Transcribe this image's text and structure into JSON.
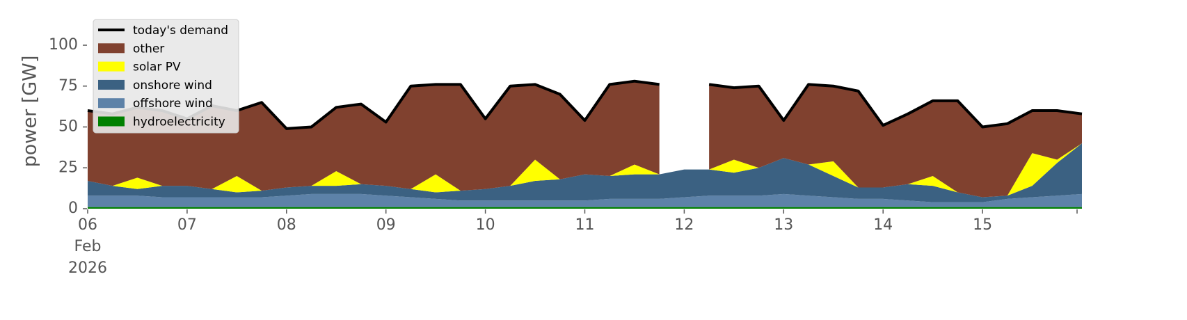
{
  "chart_data": {
    "type": "stacked-area",
    "ylabel": "power [GW]",
    "legend": "upper left",
    "x": [
      6,
      6.25,
      6.5,
      6.75,
      7,
      7.25,
      7.5,
      7.75,
      8,
      8.25,
      8.5,
      8.75,
      9,
      9.25,
      9.5,
      9.75,
      10,
      10.25,
      10.5,
      10.75,
      11,
      11.25,
      11.5,
      11.75,
      12,
      12.25,
      12.5,
      12.75,
      13,
      13.25,
      13.5,
      13.75,
      14,
      14.25,
      14.5,
      14.75,
      15,
      15.25,
      15.5,
      15.75,
      16
    ],
    "xlim": [
      6,
      16
    ],
    "xticks": [
      {
        "value": 6,
        "label": "06 Feb 2026"
      },
      {
        "value": 7,
        "label": "07"
      },
      {
        "value": 8,
        "label": "08"
      },
      {
        "value": 9,
        "label": "09"
      },
      {
        "value": 10,
        "label": "10"
      },
      {
        "value": 11,
        "label": "11"
      },
      {
        "value": 12,
        "label": "12"
      },
      {
        "value": 13,
        "label": "13"
      },
      {
        "value": 14,
        "label": "14"
      },
      {
        "value": 15,
        "label": "15"
      }
    ],
    "ylim": [
      0,
      120
    ],
    "yticks": [
      0,
      25,
      50,
      75,
      100
    ],
    "series": [
      {
        "name": "today's demand",
        "type": "line",
        "color": "#000000",
        "values": [
          60,
          58,
          62,
          60,
          55,
          63,
          60,
          65,
          49,
          50,
          62,
          64,
          53,
          75,
          76,
          76,
          55,
          75,
          76,
          70,
          54,
          76,
          78,
          76,
          null,
          76,
          74,
          75,
          54,
          76,
          75,
          72,
          51,
          58,
          66,
          66,
          50,
          52,
          60,
          60,
          58
        ]
      },
      {
        "name": "other",
        "type": "area",
        "color": "#80412f",
        "values": [
          43,
          44,
          43,
          46,
          41,
          51,
          40,
          54,
          36,
          36,
          39,
          49,
          39,
          63,
          55,
          65,
          43,
          61,
          46,
          52,
          33,
          56,
          51,
          55,
          null,
          52,
          44,
          50,
          23,
          49,
          46,
          59,
          38,
          43,
          46,
          56,
          43,
          44,
          26,
          30,
          18
        ]
      },
      {
        "name": "solar PV",
        "type": "area",
        "color": "#ffff00",
        "values": [
          0,
          0,
          7,
          0,
          0,
          0,
          10,
          0,
          0,
          0,
          9,
          0,
          0,
          0,
          11,
          0,
          0,
          0,
          13,
          0,
          0,
          0,
          6,
          0,
          0,
          0,
          8,
          0,
          0,
          0,
          9,
          0,
          0,
          0,
          6,
          0,
          0,
          0,
          20,
          2,
          0
        ]
      },
      {
        "name": "onshore wind",
        "type": "area",
        "color": "#3b6182",
        "values": [
          9,
          6,
          4,
          7,
          7,
          5,
          3,
          4,
          5,
          5,
          5,
          6,
          6,
          5,
          4,
          6,
          7,
          9,
          12,
          13,
          16,
          14,
          15,
          15,
          17,
          16,
          14,
          17,
          22,
          19,
          13,
          7,
          7,
          10,
          10,
          6,
          3,
          2,
          7,
          20,
          31
        ]
      },
      {
        "name": "offshore wind",
        "type": "area",
        "color": "#5d82a8",
        "values": [
          7,
          7,
          7,
          6,
          6,
          6,
          6,
          6,
          7,
          8,
          8,
          8,
          7,
          6,
          5,
          4,
          4,
          4,
          4,
          4,
          4,
          5,
          5,
          5,
          6,
          7,
          7,
          7,
          8,
          7,
          6,
          5,
          5,
          4,
          3,
          3,
          3,
          5,
          6,
          7,
          8
        ]
      },
      {
        "name": "hydroelectricity",
        "type": "area",
        "color": "#008000",
        "values": [
          1,
          1,
          1,
          1,
          1,
          1,
          1,
          1,
          1,
          1,
          1,
          1,
          1,
          1,
          1,
          1,
          1,
          1,
          1,
          1,
          1,
          1,
          1,
          1,
          1,
          1,
          1,
          1,
          1,
          1,
          1,
          1,
          1,
          1,
          1,
          1,
          1,
          1,
          1,
          1,
          1
        ]
      }
    ]
  }
}
